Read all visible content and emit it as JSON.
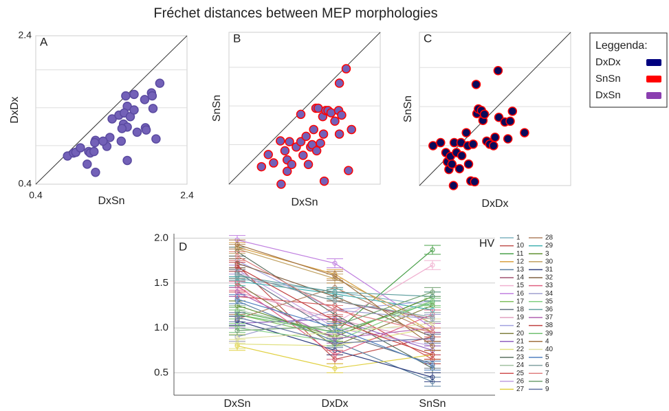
{
  "title": "Fréchet distances between MEP morphologies",
  "legend": {
    "title": "Leggenda:",
    "items": [
      {
        "label": "DxDx",
        "color": "#00007f"
      },
      {
        "label": "SnSn",
        "color": "#ff0000"
      },
      {
        "label": "DxSn",
        "color": "#8b3fb0"
      }
    ]
  },
  "chart_data": [
    {
      "type": "scatter",
      "panel_label": "A",
      "xlabel": "DxSn",
      "ylabel": "DxDx",
      "xlim": [
        0.4,
        2.4
      ],
      "ylim": [
        0.4,
        2.4
      ],
      "xticks": [
        0.4,
        2.4
      ],
      "yticks": [
        0.4,
        2.4
      ],
      "ygrid": [
        0.92,
        1.43,
        1.94
      ],
      "color": "#7361b8",
      "edgecolor": "#5a4aa0",
      "x": [
        0.82,
        0.9,
        0.93,
        0.99,
        1.1,
        1.12,
        1.17,
        1.19,
        1.18,
        1.08,
        1.19,
        1.34,
        1.38,
        1.41,
        1.5,
        1.53,
        1.56,
        1.59,
        1.61,
        1.57,
        1.61,
        1.61,
        1.65,
        1.7,
        1.7,
        1.74,
        1.85,
        1.84,
        1.93,
        1.94,
        1.95,
        1.86,
        1.99,
        2.04,
        1.54,
        1.29
      ],
      "values": [
        0.78,
        0.82,
        0.83,
        0.89,
        0.84,
        0.82,
        0.84,
        0.99,
        0.96,
        0.67,
        0.56,
        0.91,
        1.03,
        1.28,
        1.33,
        0.98,
        1.21,
        1.59,
        1.45,
        1.36,
        1.17,
        0.72,
        1.31,
        1.61,
        1.4,
        1.1,
        1.16,
        1.54,
        1.63,
        1.59,
        1.42,
        1.13,
        1.01,
        1.76,
        1.15,
        0.98
      ]
    },
    {
      "type": "scatter",
      "panel_label": "B",
      "xlabel": "DxSn",
      "ylabel": "SnSn",
      "xlim": [
        0.4,
        2.4
      ],
      "ylim": [
        0.4,
        2.4
      ],
      "ygrid": [
        0.92,
        1.43,
        1.94
      ],
      "color": "#7361b8",
      "edgecolor": "#ff0000",
      "x": [
        0.83,
        0.92,
        0.99,
        1.08,
        1.14,
        1.17,
        1.17,
        1.09,
        1.2,
        1.23,
        1.29,
        1.35,
        1.35,
        1.38,
        1.42,
        1.45,
        1.48,
        1.5,
        1.52,
        1.55,
        1.56,
        1.58,
        1.61,
        1.64,
        1.65,
        1.66,
        1.68,
        1.71,
        1.75,
        1.8,
        1.85,
        1.86,
        1.89,
        1.86,
        1.95,
        2.02,
        1.98
      ],
      "values": [
        0.63,
        0.79,
        0.68,
        0.97,
        0.84,
        0.72,
        0.57,
        0.4,
        0.96,
        0.66,
        0.89,
        0.96,
        1.32,
        0.78,
        1.03,
        0.66,
        0.89,
        0.92,
        1.12,
        1.4,
        0.84,
        1.4,
        0.94,
        1.29,
        1.06,
        0.44,
        1.37,
        1.37,
        1.34,
        1.23,
        1.37,
        1.06,
        1.31,
        1.73,
        1.92,
        1.12,
        0.58
      ]
    },
    {
      "type": "scatter",
      "panel_label": "C",
      "xlabel": "DxDx",
      "ylabel": "SnSn",
      "xlim": [
        0.4,
        2.4
      ],
      "ylim": [
        0.4,
        2.4
      ],
      "ygrid": [
        0.92,
        1.43,
        1.94
      ],
      "color": "#0a0a5a",
      "edgecolor": "#ff0000",
      "x": [
        0.58,
        0.68,
        0.75,
        0.77,
        0.79,
        0.81,
        0.83,
        0.85,
        0.86,
        0.89,
        0.93,
        0.95,
        0.96,
        1.02,
        1.04,
        1.05,
        1.08,
        1.11,
        1.13,
        1.15,
        1.16,
        1.18,
        1.22,
        1.24,
        1.26,
        1.29,
        1.33,
        1.38,
        1.4,
        1.44,
        1.45,
        1.53,
        1.6,
        1.63,
        1.57,
        1.79
      ],
      "values": [
        0.92,
        0.96,
        0.83,
        0.71,
        0.61,
        0.78,
        0.68,
        0.4,
        0.96,
        0.83,
        0.62,
        0.96,
        0.79,
        1.09,
        0.92,
        0.68,
        0.46,
        0.94,
        0.45,
        1.72,
        1.34,
        1.4,
        1.38,
        1.25,
        1.33,
        0.98,
        0.94,
        0.92,
        1.03,
        1.9,
        1.29,
        1.23,
        1.24,
        1.37,
        1.01,
        1.09
      ]
    },
    {
      "type": "line",
      "panel_label": "D",
      "legend_title": "HV",
      "grid": true,
      "categories": [
        "DxSn",
        "DxDx",
        "SnSn"
      ],
      "ylim": [
        0.25,
        2.05
      ],
      "yticks": [
        0.5,
        {
          "value": 1,
          "label": "1.0"
        },
        1.5,
        {
          "value": 2,
          "label": "2.0"
        }
      ],
      "series": [
        {
          "name": "1",
          "color": "#7fb3c0",
          "values": [
            1.55,
            1.4,
            1.25
          ],
          "error": 0.05
        },
        {
          "name": "10",
          "color": "#c0504d",
          "values": [
            1.7,
            0.65,
            0.9
          ],
          "error": 0.05
        },
        {
          "name": "11",
          "color": "#4aa04a",
          "values": [
            1.18,
            0.95,
            1.87
          ],
          "error": 0.05
        },
        {
          "name": "12",
          "color": "#d8a040",
          "values": [
            1.9,
            1.6,
            0.95
          ],
          "error": 0.05
        },
        {
          "name": "13",
          "color": "#5a7fa0",
          "values": [
            1.3,
            0.85,
            0.4
          ],
          "error": 0.05
        },
        {
          "name": "14",
          "color": "#a05070",
          "values": [
            1.6,
            1.3,
            1.1
          ],
          "error": 0.05
        },
        {
          "name": "15",
          "color": "#f0b0d0",
          "values": [
            1.45,
            1.05,
            1.7
          ],
          "error": 0.05
        },
        {
          "name": "16",
          "color": "#c080e0",
          "values": [
            1.98,
            1.72,
            1.0
          ],
          "error": 0.05
        },
        {
          "name": "17",
          "color": "#80c060",
          "values": [
            1.15,
            0.9,
            1.35
          ],
          "error": 0.05
        },
        {
          "name": "18",
          "color": "#607080",
          "values": [
            1.62,
            0.95,
            0.6
          ],
          "error": 0.05
        },
        {
          "name": "19",
          "color": "#e0a0c0",
          "values": [
            1.4,
            1.1,
            0.85
          ],
          "error": 0.05
        },
        {
          "name": "2",
          "color": "#a0a0e0",
          "values": [
            1.75,
            1.2,
            1.3
          ],
          "error": 0.05
        },
        {
          "name": "20",
          "color": "#808040",
          "values": [
            1.5,
            0.8,
            1.25
          ],
          "error": 0.05
        },
        {
          "name": "21",
          "color": "#9060c0",
          "values": [
            1.05,
            1.1,
            0.75
          ],
          "error": 0.05
        },
        {
          "name": "22",
          "color": "#e0e080",
          "values": [
            0.82,
            0.8,
            1.0
          ],
          "error": 0.05
        },
        {
          "name": "23",
          "color": "#5a7060",
          "values": [
            1.85,
            1.15,
            0.55
          ],
          "error": 0.05
        },
        {
          "name": "24",
          "color": "#a0c0a0",
          "values": [
            1.2,
            0.95,
            1.3
          ],
          "error": 0.05
        },
        {
          "name": "25",
          "color": "#d05050",
          "values": [
            1.35,
            1.25,
            0.65
          ],
          "error": 0.05
        },
        {
          "name": "26",
          "color": "#c0a0e0",
          "values": [
            1.65,
            1.0,
            0.8
          ],
          "error": 0.05
        },
        {
          "name": "27",
          "color": "#e0d040",
          "values": [
            0.8,
            0.55,
            0.7
          ],
          "error": 0.05
        },
        {
          "name": "28",
          "color": "#b08060",
          "values": [
            1.1,
            1.45,
            0.95
          ],
          "error": 0.05
        },
        {
          "name": "29",
          "color": "#40b0b0",
          "values": [
            1.52,
            1.38,
            1.2
          ],
          "error": 0.05
        },
        {
          "name": "3",
          "color": "#609030",
          "values": [
            1.25,
            0.9,
            1.35
          ],
          "error": 0.05
        },
        {
          "name": "30",
          "color": "#c0a060",
          "values": [
            1.88,
            1.55,
            1.05
          ],
          "error": 0.05
        },
        {
          "name": "31",
          "color": "#304080",
          "values": [
            1.08,
            0.75,
            0.45
          ],
          "error": 0.05
        },
        {
          "name": "32",
          "color": "#806040",
          "values": [
            1.72,
            1.35,
            0.9
          ],
          "error": 0.05
        },
        {
          "name": "33",
          "color": "#e06080",
          "values": [
            1.47,
            0.7,
            1.15
          ],
          "error": 0.05
        },
        {
          "name": "34",
          "color": "#a0a0d0",
          "values": [
            0.9,
            1.2,
            1.1
          ],
          "error": 0.05
        },
        {
          "name": "35",
          "color": "#80d080",
          "values": [
            1.0,
            0.85,
            1.3
          ],
          "error": 0.05
        },
        {
          "name": "36",
          "color": "#60a0a0",
          "values": [
            1.58,
            1.4,
            1.35
          ],
          "error": 0.05
        },
        {
          "name": "37",
          "color": "#b060b0",
          "values": [
            1.4,
            0.88,
            1.0
          ],
          "error": 0.05
        },
        {
          "name": "38",
          "color": "#c04040",
          "values": [
            1.68,
            1.08,
            0.7
          ],
          "error": 0.05
        },
        {
          "name": "39",
          "color": "#70c070",
          "values": [
            1.15,
            0.95,
            1.28
          ],
          "error": 0.05
        },
        {
          "name": "4",
          "color": "#a07040",
          "values": [
            1.93,
            1.58,
            0.8
          ],
          "error": 0.05
        },
        {
          "name": "40",
          "color": "#e0e0a0",
          "values": [
            0.88,
            0.95,
            1.05
          ],
          "error": 0.05
        },
        {
          "name": "5",
          "color": "#5080c0",
          "values": [
            1.32,
            1.0,
            0.58
          ],
          "error": 0.05
        },
        {
          "name": "6",
          "color": "#80a0a0",
          "values": [
            1.6,
            1.3,
            1.12
          ],
          "error": 0.05
        },
        {
          "name": "7",
          "color": "#e08080",
          "values": [
            1.8,
            1.2,
            0.95
          ],
          "error": 0.05
        },
        {
          "name": "8",
          "color": "#70a070",
          "values": [
            0.97,
            1.02,
            1.4
          ],
          "error": 0.05
        },
        {
          "name": "9",
          "color": "#6070a0",
          "values": [
            1.12,
            0.83,
            0.88
          ],
          "error": 0.05
        }
      ]
    }
  ]
}
